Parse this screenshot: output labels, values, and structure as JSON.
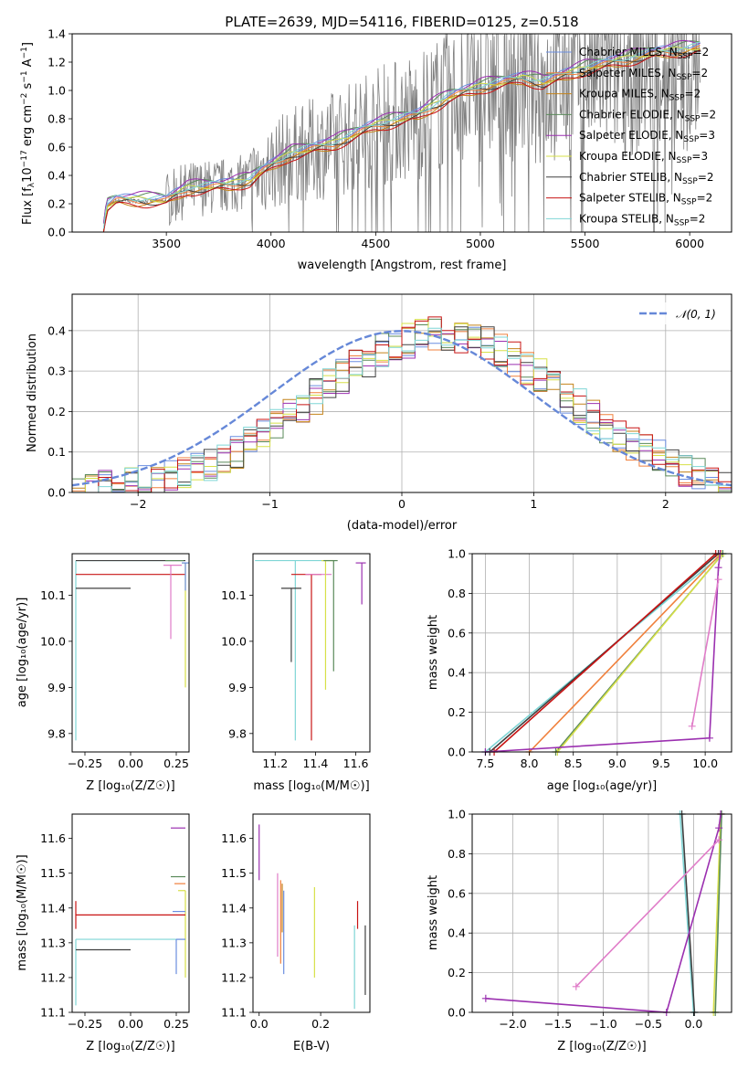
{
  "figure": {
    "title": "PLATE=2639, MJD=54116, FIBERID=0125, z=0.518"
  },
  "chart_data": [
    {
      "id": "spectrum",
      "type": "line",
      "xlabel": "wavelength [Angstrom, rest frame]",
      "ylabel": "Flux [f",
      "xlim": [
        3050,
        6200
      ],
      "ylim": [
        0,
        1.4
      ],
      "xticks": [
        "3500",
        "4000",
        "4500",
        "5000",
        "5500",
        "6000"
      ],
      "yticks": [
        "0.0",
        "0.2",
        "0.4",
        "0.6",
        "0.8",
        "1.0",
        "1.2",
        "1.4"
      ],
      "grid": false,
      "legend": "top-right",
      "data_color": "#808080",
      "series": [
        {
          "name": "Chabrier MILES, N",
          "sub": "SSP",
          "suffix": "=2",
          "color": "#6b8ee0"
        },
        {
          "name": "Salpeter MILES, N",
          "sub": "SSP",
          "suffix": "=2",
          "color": "#f0803c"
        },
        {
          "name": "Kroupa MILES, N",
          "sub": "SSP",
          "suffix": "=2",
          "color": "#c4831a"
        },
        {
          "name": "Chabrier ELODIE, N",
          "sub": "SSP",
          "suffix": "=2",
          "color": "#5a8a5a"
        },
        {
          "name": "Salpeter ELODIE, N",
          "sub": "SSP",
          "suffix": "=3",
          "color": "#9b30b0"
        },
        {
          "name": "Kroupa ELODIE, N",
          "sub": "SSP",
          "suffix": "=3",
          "color": "#d7e048"
        },
        {
          "name": "Chabrier STELIB, N",
          "sub": "SSP",
          "suffix": "=2",
          "color": "#404040"
        },
        {
          "name": "Salpeter STELIB, N",
          "sub": "SSP",
          "suffix": "=2",
          "color": "#c81414"
        },
        {
          "name": "Kroupa STELIB, N",
          "sub": "SSP",
          "suffix": "=2",
          "color": "#7fd6d6"
        }
      ],
      "model_shape": [
        [
          3200,
          0.0
        ],
        [
          3215,
          0.18
        ],
        [
          3260,
          0.22
        ],
        [
          3500,
          0.22
        ],
        [
          3600,
          0.3
        ],
        [
          3800,
          0.33
        ],
        [
          3900,
          0.36
        ],
        [
          3950,
          0.42
        ],
        [
          4100,
          0.55
        ],
        [
          4300,
          0.62
        ],
        [
          4500,
          0.75
        ],
        [
          4700,
          0.82
        ],
        [
          4850,
          0.95
        ],
        [
          5000,
          1.02
        ],
        [
          5200,
          1.08
        ],
        [
          5300,
          1.05
        ],
        [
          5500,
          1.15
        ],
        [
          5800,
          1.25
        ],
        [
          6050,
          1.3
        ]
      ],
      "model_offsets": [
        0.03,
        0.0,
        -0.02,
        0.04,
        0.05,
        0.01,
        -0.01,
        -0.03,
        0.02
      ]
    },
    {
      "id": "residuals",
      "type": "step",
      "xlabel": "(data-model)/error",
      "ylabel": "Normed distribution",
      "xlim": [
        -2.5,
        2.5
      ],
      "ylim": [
        0,
        0.49
      ],
      "xticks": [
        "−2",
        "−1",
        "0",
        "1",
        "2"
      ],
      "yticks": [
        "0.0",
        "0.1",
        "0.2",
        "0.3",
        "0.4"
      ],
      "grid": true,
      "legend": "top-right",
      "gauss_label": "𝒩(0, 1)",
      "gauss_color": "#6688d8"
    },
    {
      "id": "age-vs-Z",
      "type": "errorbar",
      "xlabel": "Z [log₁₀(Z/Z☉)]",
      "ylabel": "age  [log₁₀(age/yr)]",
      "xlim": [
        -0.32,
        0.32
      ],
      "ylim": [
        9.76,
        10.19
      ],
      "xticks": [
        "−0.25",
        "0.00",
        "0.25"
      ],
      "yticks": [
        "9.8",
        "9.9",
        "10.0",
        "10.1"
      ],
      "grid": false,
      "points": [
        {
          "x": -0.3,
          "y": 10.175,
          "xerr": [
            0.0,
            0.6
          ],
          "yerr": [
            0.39,
            0.0
          ],
          "color": "#7fd6d6"
        },
        {
          "x": 0.25,
          "y": 10.175,
          "xerr": [
            0.55,
            0.05
          ],
          "yerr": [
            0.0,
            0.0
          ],
          "color": "#404040"
        },
        {
          "x": 0.3,
          "y": 10.145,
          "xerr": [
            0.6,
            0.0
          ],
          "yerr": [
            0.0,
            0.0
          ],
          "color": "#c81414"
        },
        {
          "x": -0.3,
          "y": 10.115,
          "xerr": [
            0.0,
            0.3
          ],
          "yerr": [
            0.0,
            0.0
          ],
          "color": "#404040"
        },
        {
          "x": 0.22,
          "y": 10.165,
          "xerr": [
            0.04,
            0.06
          ],
          "yerr": [
            0.16,
            0.0
          ],
          "color": "#e07cc8"
        },
        {
          "x": 0.3,
          "y": 10.17,
          "xerr": [
            0.02,
            0.02
          ],
          "yerr": [
            0.27,
            0.0
          ],
          "color": "#d7e048"
        },
        {
          "x": 0.3,
          "y": 10.17,
          "xerr": [
            0.02,
            0.02
          ],
          "yerr": [
            0.06,
            0.0
          ],
          "color": "#6b8ee0"
        },
        {
          "x": 0.27,
          "y": 10.175,
          "xerr": [
            0.08,
            0.02
          ],
          "yerr": [
            0.0,
            0.0
          ],
          "color": "#5a8a5a"
        }
      ]
    },
    {
      "id": "age-vs-mass",
      "type": "errorbar",
      "xlabel": "mass [log₁₀(M/M☉)]",
      "ylabel": "",
      "xlim": [
        11.09,
        11.67
      ],
      "ylim": [
        9.76,
        10.19
      ],
      "xticks": [
        "11.2",
        "11.4",
        "11.6"
      ],
      "yticks": [
        "9.8",
        "9.9",
        "10.0",
        "10.1"
      ],
      "grid": false,
      "points": [
        {
          "x": 11.3,
          "y": 10.175,
          "xerr": [
            0.2,
            0.2
          ],
          "yerr": [
            0.39,
            0.0
          ],
          "color": "#7fd6d6"
        },
        {
          "x": 11.38,
          "y": 10.145,
          "xerr": [
            0.1,
            0.05
          ],
          "yerr": [
            0.36,
            0.0
          ],
          "color": "#c81414"
        },
        {
          "x": 11.28,
          "y": 10.115,
          "xerr": [
            0.05,
            0.05
          ],
          "yerr": [
            0.16,
            0.0
          ],
          "color": "#404040"
        },
        {
          "x": 11.43,
          "y": 10.145,
          "xerr": [
            0.08,
            0.05
          ],
          "yerr": [
            0.0,
            0.0
          ],
          "color": "#e07cc8"
        },
        {
          "x": 11.45,
          "y": 10.175,
          "xerr": [
            0.02,
            0.04
          ],
          "yerr": [
            0.28,
            0.0
          ],
          "color": "#d7e048"
        },
        {
          "x": 11.49,
          "y": 10.175,
          "xerr": [
            0.05,
            0.02
          ],
          "yerr": [
            0.24,
            0.0
          ],
          "color": "#5a8a5a"
        },
        {
          "x": 11.63,
          "y": 10.17,
          "xerr": [
            0.03,
            0.02
          ],
          "yerr": [
            0.09,
            0.0
          ],
          "color": "#9b30b0"
        }
      ]
    },
    {
      "id": "weight-vs-age",
      "type": "line",
      "xlabel": "age  [log₁₀(age/yr)]",
      "ylabel": "mass weight",
      "xlim": [
        7.35,
        10.3
      ],
      "ylim": [
        0,
        1
      ],
      "xticks": [
        "7.5",
        "8.0",
        "8.5",
        "9.0",
        "9.5",
        "10.0"
      ],
      "yticks": [
        "0.0",
        "0.2",
        "0.4",
        "0.6",
        "0.8",
        "1.0"
      ],
      "grid": true,
      "series": [
        {
          "color": "#7fd6d6",
          "points": [
            [
              7.5,
              0.0
            ],
            [
              10.2,
              1.0
            ]
          ]
        },
        {
          "color": "#404040",
          "points": [
            [
              7.55,
              0.0
            ],
            [
              10.15,
              1.0
            ]
          ]
        },
        {
          "color": "#c81414",
          "points": [
            [
              7.6,
              0.0
            ],
            [
              10.12,
              1.0
            ]
          ]
        },
        {
          "color": "#f0803c",
          "points": [
            [
              8.0,
              0.0
            ],
            [
              10.18,
              1.0
            ]
          ]
        },
        {
          "color": "#5a8a5a",
          "points": [
            [
              8.3,
              0.0
            ],
            [
              10.2,
              1.0
            ]
          ]
        },
        {
          "color": "#d7e048",
          "points": [
            [
              8.32,
              0.0
            ],
            [
              10.18,
              0.99
            ]
          ]
        },
        {
          "color": "#9b30b0",
          "points": [
            [
              7.5,
              0.0
            ],
            [
              10.05,
              0.07
            ],
            [
              10.15,
              0.93
            ],
            [
              10.17,
              1.0
            ]
          ]
        },
        {
          "color": "#e07cc8",
          "points": [
            [
              9.85,
              0.13
            ],
            [
              10.15,
              0.87
            ]
          ]
        }
      ]
    },
    {
      "id": "mass-vs-Z",
      "type": "errorbar",
      "xlabel": "Z [log₁₀(Z/Z☉)]",
      "ylabel": "mass [log₁₀(M/M☉)]",
      "xlim": [
        -0.32,
        0.32
      ],
      "ylim": [
        11.1,
        11.67
      ],
      "xticks": [
        "−0.25",
        "0.00",
        "0.25"
      ],
      "yticks": [
        "11.1",
        "11.2",
        "11.3",
        "11.4",
        "11.5",
        "11.6"
      ],
      "grid": false,
      "points": [
        {
          "x": 0.28,
          "y": 11.63,
          "xerr": [
            0.06,
            0.02
          ],
          "yerr": [
            0.0,
            0.0
          ],
          "color": "#9b30b0"
        },
        {
          "x": 0.3,
          "y": 11.49,
          "xerr": [
            0.08,
            0.0
          ],
          "yerr": [
            0.0,
            0.0
          ],
          "color": "#5a8a5a"
        },
        {
          "x": 0.3,
          "y": 11.47,
          "xerr": [
            0.06,
            0.0
          ],
          "yerr": [
            0.0,
            0.0
          ],
          "color": "#f0803c"
        },
        {
          "x": 0.3,
          "y": 11.45,
          "xerr": [
            0.04,
            0.0
          ],
          "yerr": [
            0.25,
            0.0
          ],
          "color": "#d7e048"
        },
        {
          "x": 0.28,
          "y": 11.39,
          "xerr": [
            0.05,
            0.02
          ],
          "yerr": [
            0.0,
            0.0
          ],
          "color": "#6b8ee0"
        },
        {
          "x": 0.3,
          "y": 11.38,
          "xerr": [
            0.6,
            0.0
          ],
          "yerr": [
            0.0,
            0.0
          ],
          "color": "#c81414"
        },
        {
          "x": -0.3,
          "y": 11.38,
          "xerr": [
            0.0,
            0.0
          ],
          "yerr": [
            0.04,
            0.04
          ],
          "color": "#c81414"
        },
        {
          "x": -0.3,
          "y": 11.31,
          "xerr": [
            0.0,
            0.6
          ],
          "yerr": [
            0.19,
            0.0
          ],
          "color": "#7fd6d6"
        },
        {
          "x": 0.0,
          "y": 11.28,
          "xerr": [
            0.3,
            0.0
          ],
          "yerr": [
            0.0,
            0.0
          ],
          "color": "#404040"
        },
        {
          "x": 0.25,
          "y": 11.31,
          "xerr": [
            0.0,
            0.05
          ],
          "yerr": [
            0.1,
            0.0
          ],
          "color": "#6b8ee0"
        }
      ]
    },
    {
      "id": "mass-vs-ebv",
      "type": "errorbar",
      "xlabel": "E(B-V)",
      "ylabel": "",
      "xlim": [
        -0.02,
        0.36
      ],
      "ylim": [
        11.1,
        11.67
      ],
      "xticks": [
        "0.0",
        "0.2"
      ],
      "yticks": [
        "11.1",
        "11.2",
        "11.3",
        "11.4",
        "11.5",
        "11.6"
      ],
      "grid": false,
      "points": [
        {
          "x": 0.0,
          "y": 11.56,
          "xerr": [
            0,
            0
          ],
          "yerr": [
            0.08,
            0.08
          ],
          "color": "#9b30b0"
        },
        {
          "x": 0.06,
          "y": 11.38,
          "xerr": [
            0,
            0
          ],
          "yerr": [
            0.12,
            0.12
          ],
          "color": "#e07cc8"
        },
        {
          "x": 0.07,
          "y": 11.36,
          "xerr": [
            0,
            0
          ],
          "yerr": [
            0.12,
            0.12
          ],
          "color": "#f0803c"
        },
        {
          "x": 0.075,
          "y": 11.4,
          "xerr": [
            0,
            0
          ],
          "yerr": [
            0.07,
            0.07
          ],
          "color": "#c4831a"
        },
        {
          "x": 0.08,
          "y": 11.33,
          "xerr": [
            0,
            0
          ],
          "yerr": [
            0.12,
            0.12
          ],
          "color": "#6b8ee0"
        },
        {
          "x": 0.18,
          "y": 11.33,
          "xerr": [
            0,
            0
          ],
          "yerr": [
            0.13,
            0.13
          ],
          "color": "#d7e048"
        },
        {
          "x": 0.32,
          "y": 11.38,
          "xerr": [
            0,
            0
          ],
          "yerr": [
            0.04,
            0.04
          ],
          "color": "#c81414"
        },
        {
          "x": 0.31,
          "y": 11.23,
          "xerr": [
            0,
            0
          ],
          "yerr": [
            0.12,
            0.12
          ],
          "color": "#7fd6d6"
        },
        {
          "x": 0.345,
          "y": 11.25,
          "xerr": [
            0,
            0
          ],
          "yerr": [
            0.1,
            0.1
          ],
          "color": "#404040"
        }
      ]
    },
    {
      "id": "weight-vs-Z",
      "type": "line",
      "xlabel": "Z [log₁₀(Z/Z☉)]",
      "ylabel": "mass weight",
      "xlim": [
        -2.45,
        0.42
      ],
      "ylim": [
        0,
        1
      ],
      "xticks": [
        "−2.0",
        "−1.5",
        "−1.0",
        "−0.5",
        "0.0"
      ],
      "yticks": [
        "0.0",
        "0.2",
        "0.4",
        "0.6",
        "0.8",
        "1.0"
      ],
      "grid": true,
      "series": [
        {
          "color": "#7fd6d6",
          "points": [
            [
              -0.15,
              1.0
            ],
            [
              0.0,
              0.0
            ]
          ]
        },
        {
          "color": "#404040",
          "points": [
            [
              -0.13,
              1.0
            ],
            [
              0.01,
              0.0
            ]
          ]
        },
        {
          "color": "#d7e048",
          "points": [
            [
              0.22,
              0.0
            ],
            [
              0.3,
              1.0
            ]
          ]
        },
        {
          "color": "#5a8a5a",
          "points": [
            [
              0.24,
              0.0
            ],
            [
              0.31,
              1.0
            ]
          ]
        },
        {
          "color": "#9b30b0",
          "points": [
            [
              -2.3,
              0.07
            ],
            [
              -0.3,
              0.0
            ],
            [
              0.28,
              0.93
            ],
            [
              0.3,
              1.0
            ]
          ]
        },
        {
          "color": "#e07cc8",
          "points": [
            [
              -1.3,
              0.13
            ],
            [
              0.28,
              0.87
            ]
          ]
        }
      ]
    }
  ]
}
